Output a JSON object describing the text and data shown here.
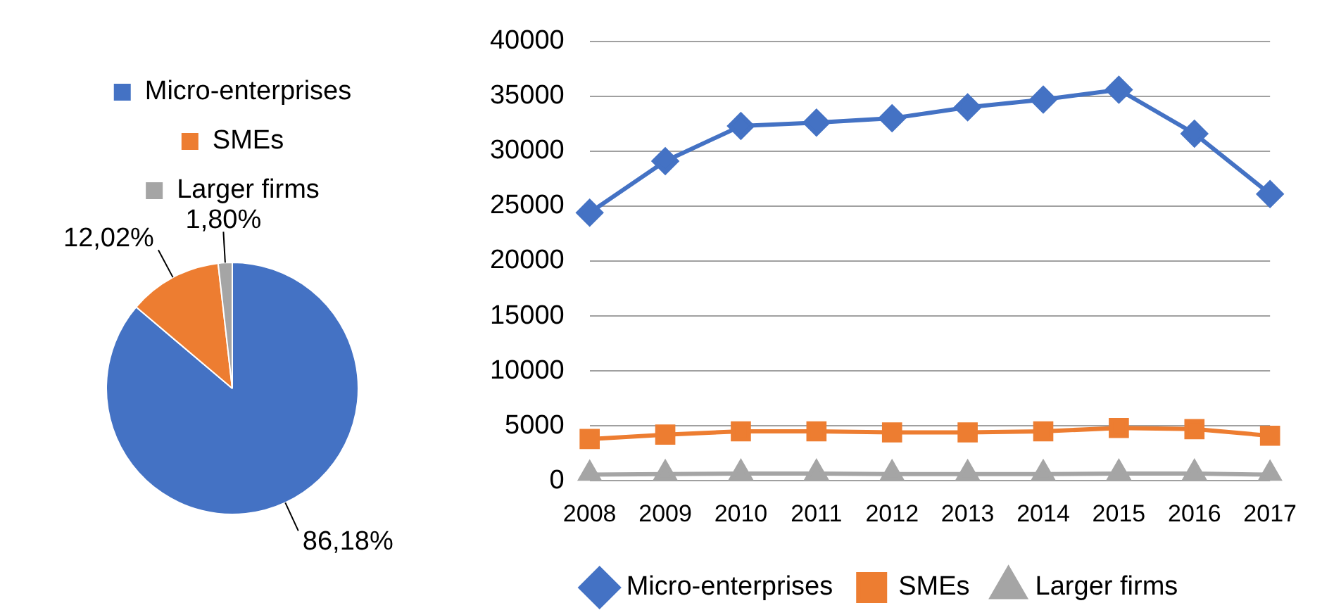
{
  "chart_data": [
    {
      "type": "pie",
      "categories": [
        "Micro-enterprises",
        "SMEs",
        "Larger firms"
      ],
      "values": [
        86.18,
        12.02,
        1.8
      ],
      "colors": [
        "#4472c4",
        "#ed7d31",
        "#a5a5a5"
      ],
      "value_labels": [
        "86,18%",
        "12,02%",
        "1,80%"
      ],
      "legend": "top"
    },
    {
      "type": "line",
      "categories": [
        "2008",
        "2009",
        "2010",
        "2011",
        "2012",
        "2013",
        "2014",
        "2015",
        "2016",
        "2017"
      ],
      "series": [
        {
          "name": "Micro-enterprises",
          "color": "#4472c4",
          "marker": "diamond",
          "values": [
            24400,
            29100,
            32300,
            32600,
            33000,
            34000,
            34700,
            35600,
            31600,
            26100
          ]
        },
        {
          "name": "SMEs",
          "color": "#ed7d31",
          "marker": "square",
          "values": [
            3800,
            4200,
            4500,
            4500,
            4400,
            4400,
            4500,
            4800,
            4700,
            4100
          ]
        },
        {
          "name": "Larger firms",
          "color": "#a5a5a5",
          "marker": "triangle",
          "values": [
            550,
            600,
            650,
            650,
            600,
            600,
            600,
            650,
            650,
            550
          ]
        }
      ],
      "ylim": [
        0,
        40000
      ],
      "yticks": [
        0,
        5000,
        10000,
        15000,
        20000,
        25000,
        30000,
        35000,
        40000
      ],
      "grid": "y",
      "legend": "bottom"
    }
  ]
}
